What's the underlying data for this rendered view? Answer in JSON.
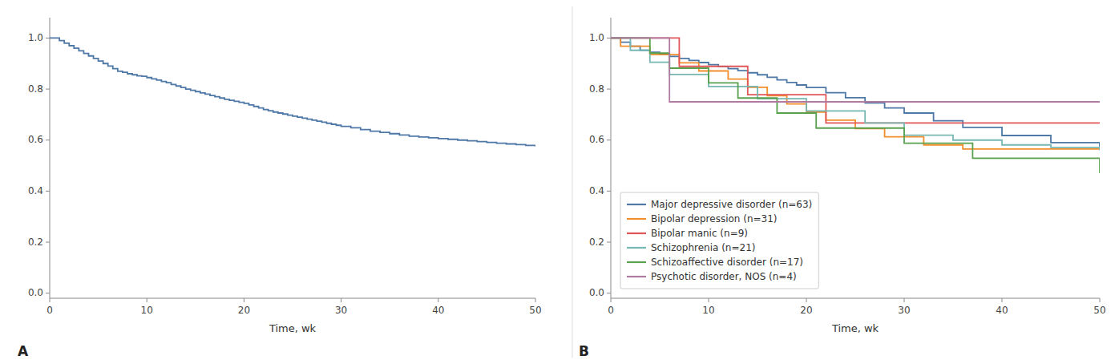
{
  "chart_data": [
    {
      "type": "step",
      "title": "A",
      "x_label": "Time, wk",
      "xlim": [
        0,
        50
      ],
      "ylim": [
        -0.02,
        1.08
      ],
      "xticks": [
        0,
        10,
        20,
        30,
        40,
        50
      ],
      "yticks": [
        {
          "value": 0.0,
          "label": "0.0"
        },
        0.2,
        0.4,
        0.6,
        0.8,
        {
          "value": 1.0,
          "label": "1.0"
        }
      ],
      "grid": false,
      "x": [
        0,
        0.3,
        0.6,
        1.0,
        1.5,
        2.0,
        2.5,
        3.0,
        3.5,
        4.0,
        4.5,
        5.0,
        5.5,
        6.0,
        6.5,
        7.0,
        7.5,
        8.0,
        8.5,
        9.0,
        9.5,
        10.0,
        10.5,
        11.0,
        11.5,
        12.0,
        12.5,
        13.0,
        13.5,
        14.0,
        14.5,
        15.0,
        15.5,
        16.0,
        16.5,
        17.0,
        17.5,
        18.0,
        18.5,
        19.0,
        19.5,
        20.0,
        20.5,
        21.0,
        21.5,
        22.0,
        22.5,
        23.0,
        23.5,
        24.0,
        24.5,
        25.0,
        25.5,
        26.0,
        26.5,
        27.0,
        27.5,
        28.0,
        28.5,
        29.0,
        29.5,
        30.0,
        31.0,
        32.0,
        33.0,
        34.0,
        35.0,
        36.0,
        37.0,
        38.0,
        39.0,
        40.0,
        41.0,
        42.0,
        43.0,
        44.0,
        45.0,
        46.0,
        47.0,
        48.0,
        49.0,
        50.0
      ],
      "values": [
        1.0,
        1.0,
        1.0,
        0.99,
        0.98,
        0.97,
        0.96,
        0.95,
        0.94,
        0.93,
        0.92,
        0.91,
        0.9,
        0.89,
        0.88,
        0.87,
        0.866,
        0.86,
        0.856,
        0.852,
        0.85,
        0.845,
        0.84,
        0.835,
        0.83,
        0.825,
        0.818,
        0.812,
        0.806,
        0.8,
        0.795,
        0.79,
        0.785,
        0.78,
        0.775,
        0.77,
        0.765,
        0.76,
        0.756,
        0.752,
        0.748,
        0.744,
        0.738,
        0.732,
        0.726,
        0.72,
        0.715,
        0.71,
        0.706,
        0.702,
        0.698,
        0.694,
        0.69,
        0.686,
        0.682,
        0.678,
        0.674,
        0.67,
        0.666,
        0.662,
        0.658,
        0.654,
        0.648,
        0.641,
        0.635,
        0.63,
        0.625,
        0.62,
        0.615,
        0.612,
        0.609,
        0.606,
        0.603,
        0.6,
        0.597,
        0.594,
        0.591,
        0.588,
        0.585,
        0.582,
        0.579,
        0.575
      ]
    },
    {
      "type": "step",
      "title": "B",
      "x_label": "Time, wk",
      "xlim": [
        0,
        50
      ],
      "ylim": [
        -0.02,
        1.08
      ],
      "xticks": [
        0,
        10,
        20,
        30,
        40,
        50
      ],
      "yticks": [
        {
          "value": 0.0,
          "label": "0.0"
        },
        0.2,
        0.4,
        0.6,
        0.8,
        {
          "value": 1.0,
          "label": "1.0"
        }
      ],
      "grid": false,
      "legend": "lower left",
      "series": [
        {
          "name": "Major depressive disorder (n=63)",
          "x": [
            0,
            1,
            2,
            3,
            4,
            5,
            6,
            7,
            8,
            9,
            10,
            11,
            12,
            13,
            14,
            15,
            16,
            17,
            18,
            19,
            20,
            22,
            24,
            26,
            28,
            30,
            33,
            36,
            40,
            45,
            50
          ],
          "values": [
            1.0,
            0.984,
            0.968,
            0.952,
            0.944,
            0.936,
            0.928,
            0.92,
            0.912,
            0.904,
            0.896,
            0.888,
            0.88,
            0.872,
            0.864,
            0.856,
            0.846,
            0.836,
            0.826,
            0.816,
            0.806,
            0.786,
            0.766,
            0.746,
            0.726,
            0.706,
            0.676,
            0.65,
            0.618,
            0.59,
            0.57
          ]
        },
        {
          "name": "Bipolar depression (n=31)",
          "x": [
            0,
            1,
            2,
            3,
            4,
            5,
            6,
            7,
            8,
            9,
            10,
            12,
            14,
            16,
            18,
            20,
            22,
            25,
            28,
            32,
            36,
            40,
            45,
            50
          ],
          "values": [
            1.0,
            0.968,
            0.968,
            0.968,
            0.935,
            0.935,
            0.935,
            0.903,
            0.903,
            0.871,
            0.871,
            0.839,
            0.807,
            0.774,
            0.742,
            0.71,
            0.678,
            0.645,
            0.613,
            0.581,
            0.565,
            0.565,
            0.565,
            0.565
          ]
        },
        {
          "name": "Bipolar manic (n=9)",
          "x": [
            0,
            2,
            5,
            7,
            10,
            14,
            20,
            22,
            50
          ],
          "values": [
            1.0,
            1.0,
            1.0,
            0.889,
            0.889,
            0.778,
            0.778,
            0.667,
            0.667
          ]
        },
        {
          "name": "Schizophrenia (n=21)",
          "x": [
            0,
            2,
            4,
            6,
            8,
            10,
            12,
            15,
            18,
            20,
            23,
            26,
            30,
            35,
            40,
            45,
            50
          ],
          "values": [
            1.0,
            0.952,
            0.905,
            0.857,
            0.857,
            0.81,
            0.81,
            0.762,
            0.762,
            0.714,
            0.714,
            0.667,
            0.619,
            0.6,
            0.581,
            0.571,
            0.56
          ]
        },
        {
          "name": "Schizoaffective disorder (n=17)",
          "x": [
            0,
            2,
            4,
            6,
            8,
            10,
            13,
            17,
            21,
            25,
            30,
            37,
            50
          ],
          "values": [
            1.0,
            1.0,
            0.941,
            0.882,
            0.882,
            0.824,
            0.765,
            0.706,
            0.647,
            0.647,
            0.588,
            0.529,
            0.471
          ]
        },
        {
          "name": "Psychotic disorder, NOS (n=4)",
          "x": [
            0,
            3,
            6,
            10,
            15,
            22,
            50
          ],
          "values": [
            1.0,
            1.0,
            0.75,
            0.75,
            0.75,
            0.75,
            0.75
          ]
        }
      ]
    }
  ]
}
